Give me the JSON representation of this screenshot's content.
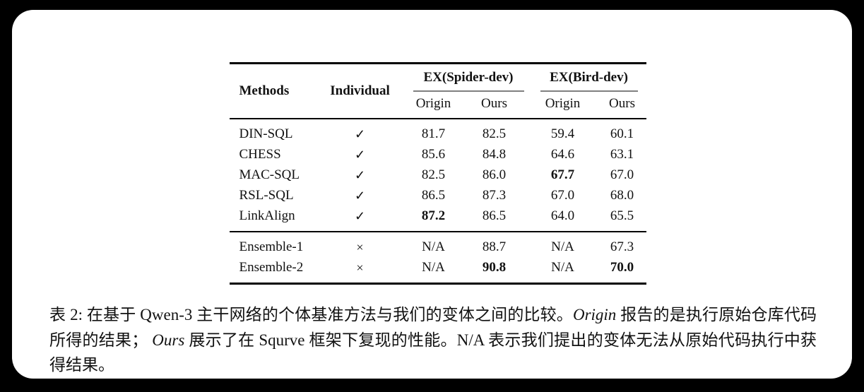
{
  "colors": {
    "background": "#000000",
    "page": "#ffffff",
    "text": "#111111",
    "rule": "#000000",
    "cmidrule": "#808080"
  },
  "table": {
    "header": {
      "methods": "Methods",
      "individual": "Individual",
      "spider_group": "EX(Spider-dev)",
      "bird_group": "EX(Bird-dev)",
      "subcolumns": [
        "Origin",
        "Ours",
        "Origin",
        "Ours"
      ]
    },
    "main_rows": [
      {
        "cells": [
          {
            "text": "DIN-SQL"
          },
          {
            "text": "✓"
          },
          {
            "text": "81.7"
          },
          {
            "text": "82.5"
          },
          {
            "text": "59.4"
          },
          {
            "text": "60.1"
          }
        ]
      },
      {
        "cells": [
          {
            "text": "CHESS"
          },
          {
            "text": "✓"
          },
          {
            "text": "85.6"
          },
          {
            "text": "84.8"
          },
          {
            "text": "64.6"
          },
          {
            "text": "63.1"
          }
        ]
      },
      {
        "cells": [
          {
            "text": "MAC-SQL"
          },
          {
            "text": "✓"
          },
          {
            "text": "82.5"
          },
          {
            "text": "86.0"
          },
          {
            "text": "67.7",
            "bold": true
          },
          {
            "text": "67.0"
          }
        ]
      },
      {
        "cells": [
          {
            "text": "RSL-SQL"
          },
          {
            "text": "✓"
          },
          {
            "text": "86.5"
          },
          {
            "text": "87.3"
          },
          {
            "text": "67.0"
          },
          {
            "text": "68.0"
          }
        ]
      },
      {
        "cells": [
          {
            "text": "LinkAlign"
          },
          {
            "text": "✓"
          },
          {
            "text": "87.2",
            "bold": true
          },
          {
            "text": "86.5"
          },
          {
            "text": "64.0"
          },
          {
            "text": "65.5"
          }
        ]
      }
    ],
    "ensemble_rows": [
      {
        "cells": [
          {
            "text": "Ensemble-1"
          },
          {
            "text": "×"
          },
          {
            "text": "N/A"
          },
          {
            "text": "88.7"
          },
          {
            "text": "N/A"
          },
          {
            "text": "67.3"
          }
        ]
      },
      {
        "cells": [
          {
            "text": "Ensemble-2"
          },
          {
            "text": "×"
          },
          {
            "text": "N/A"
          },
          {
            "text": "90.8",
            "bold": true
          },
          {
            "text": "N/A"
          },
          {
            "text": "70.0",
            "bold": true
          }
        ]
      }
    ]
  },
  "caption": {
    "segments": [
      {
        "text": "表 2: 在基于 Qwen-3 主干网络的个体基准方法与我们的变体之间的比较。"
      },
      {
        "text": "Origin",
        "italic": true
      },
      {
        "text": " 报告的是执行原始仓库代码所得的结果； "
      },
      {
        "text": "Ours",
        "italic": true
      },
      {
        "text": " 展示了在 Squrve 框架下复现的性能。N/A 表示我们提出的变体无法从原始代码执行中获得结果。"
      }
    ]
  }
}
